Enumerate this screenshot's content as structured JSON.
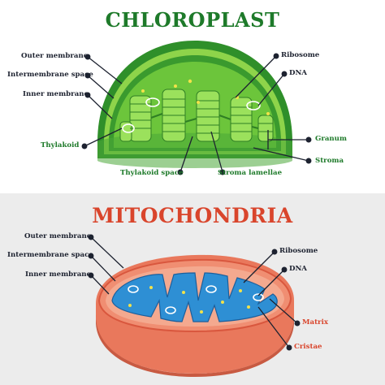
{
  "chloroplast": {
    "title": "CHLOROPLAST",
    "labels": {
      "outer_membrane": "Outer membrane",
      "intermembrane_space": "Intermembrane space",
      "inner_membrane": "Inner membrane",
      "thylakoid": "Thylakoid",
      "thylakoid_space": "Thylakoid space",
      "stroma_lamellae": "Stroma lamellae",
      "ribosome": "Ribosome",
      "dna": "DNA",
      "granum": "Granum",
      "stroma": "Stroma"
    }
  },
  "mitochondria": {
    "title": "MITOCHONDRIA",
    "labels": {
      "outer_membrane": "Outer membrane",
      "intermembrane_space": "Intermembrane space",
      "inner_membrane": "Inner membrane",
      "ribosome": "Ribosome",
      "dna": "DNA",
      "matrix": "Matrix",
      "cristae": "Cristae"
    }
  },
  "colors": {
    "chloro_title": "#1e7a2a",
    "mito_title": "#d9452c",
    "leader_line": "#1d2230",
    "stroma_green": "#6cc53b",
    "outer_green": "#2f8f2a",
    "mito_orange": "#e9785c",
    "matrix_blue": "#2e8fd4"
  }
}
